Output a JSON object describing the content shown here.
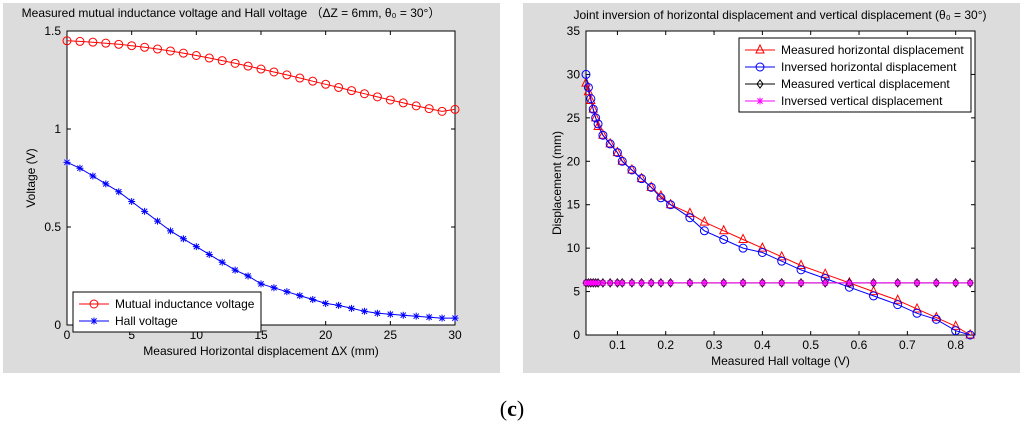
{
  "chart_data": [
    {
      "type": "line",
      "title": "Measured mutual inductance voltage and Hall voltage",
      "title_params": "（ΔZ = 6mm, θ₀ = 30°）",
      "xlabel": "Measured Horizontal displacement ΔX (mm)",
      "ylabel": "Voltage (V)",
      "xlim": [
        0,
        30
      ],
      "ylim": [
        0,
        1.5
      ],
      "xticks": [
        0,
        5,
        10,
        15,
        20,
        25,
        30
      ],
      "yticks": [
        0,
        0.5,
        1,
        1.5
      ],
      "ytick_labels": [
        "0",
        "0.5",
        "1",
        "1.5"
      ],
      "legend_position": "bottom-left",
      "x": [
        0,
        1,
        2,
        3,
        4,
        5,
        6,
        7,
        8,
        9,
        10,
        11,
        12,
        13,
        14,
        15,
        16,
        17,
        18,
        19,
        20,
        21,
        22,
        23,
        24,
        25,
        26,
        27,
        28,
        29,
        30
      ],
      "series": [
        {
          "name": "Mutual inductance voltage",
          "color": "#ff0000",
          "marker": "circle",
          "values": [
            1.45,
            1.447,
            1.443,
            1.438,
            1.432,
            1.425,
            1.417,
            1.408,
            1.398,
            1.387,
            1.375,
            1.362,
            1.349,
            1.335,
            1.321,
            1.306,
            1.291,
            1.276,
            1.26,
            1.244,
            1.228,
            1.212,
            1.196,
            1.18,
            1.164,
            1.148,
            1.133,
            1.118,
            1.104,
            1.09,
            1.1
          ]
        },
        {
          "name": "Hall voltage",
          "color": "#0000ff",
          "marker": "star",
          "values": [
            0.83,
            0.8,
            0.76,
            0.72,
            0.68,
            0.63,
            0.58,
            0.53,
            0.48,
            0.44,
            0.4,
            0.36,
            0.32,
            0.28,
            0.25,
            0.21,
            0.19,
            0.17,
            0.15,
            0.13,
            0.11,
            0.1,
            0.085,
            0.07,
            0.06,
            0.055,
            0.05,
            0.045,
            0.04,
            0.035,
            0.035
          ]
        }
      ]
    },
    {
      "type": "line",
      "title": "Joint inversion of horizontal displacement and vertical displacement",
      "title_params": "(θ₀ = 30°)",
      "xlabel": "Measured Hall voltage (V)",
      "ylabel": "Displacement (mm)",
      "xlim": [
        0.035,
        0.84
      ],
      "ylim": [
        0,
        35
      ],
      "xticks": [
        0.1,
        0.2,
        0.3,
        0.4,
        0.5,
        0.6,
        0.7,
        0.8
      ],
      "xtick_labels": [
        "0.1",
        "0.2",
        "0.3",
        "0.4",
        "0.5",
        "0.6",
        "0.7",
        "0.8"
      ],
      "yticks": [
        0,
        5,
        10,
        15,
        20,
        25,
        30,
        35
      ],
      "legend_position": "top-right",
      "x": [
        0.035,
        0.04,
        0.045,
        0.05,
        0.055,
        0.06,
        0.07,
        0.085,
        0.1,
        0.11,
        0.13,
        0.15,
        0.17,
        0.19,
        0.21,
        0.25,
        0.28,
        0.32,
        0.36,
        0.4,
        0.44,
        0.48,
        0.53,
        0.58,
        0.63,
        0.68,
        0.72,
        0.76,
        0.8,
        0.83
      ],
      "series": [
        {
          "name": "Measured horizontal displacement",
          "color": "#ff0000",
          "marker": "triangle",
          "values": [
            29,
            28,
            27,
            26,
            25,
            24,
            23,
            22,
            21,
            20,
            19,
            18,
            17,
            16,
            15,
            14,
            13,
            12,
            11,
            10,
            9,
            8,
            7,
            6,
            5,
            4,
            3,
            2,
            1,
            0
          ]
        },
        {
          "name": "Inversed horizontal displacement",
          "color": "#0000ff",
          "marker": "circle",
          "values": [
            30,
            28.5,
            27.2,
            26,
            25,
            24.3,
            23,
            22,
            21,
            20,
            19,
            18,
            17,
            15.8,
            15,
            13.5,
            12,
            11,
            10,
            9.5,
            8.5,
            7.5,
            6.5,
            5.5,
            4.5,
            3.5,
            2.5,
            1.8,
            0.5,
            0
          ]
        },
        {
          "name": "Measured vertical displacement",
          "color": "#000000",
          "marker": "diamond",
          "values": [
            6,
            6,
            6,
            6,
            6,
            6,
            6,
            6,
            6,
            6,
            6,
            6,
            6,
            6,
            6,
            6,
            6,
            6,
            6,
            6,
            6,
            6,
            6,
            6,
            6,
            6,
            6,
            6,
            6,
            6
          ]
        },
        {
          "name": "Inversed vertical displacement",
          "color": "#ff00ff",
          "marker": "star",
          "values": [
            6,
            6,
            6,
            6,
            6,
            6,
            6,
            6,
            6,
            6,
            6,
            6,
            6,
            6,
            6,
            6,
            6,
            6,
            6,
            6,
            6,
            6,
            6,
            6,
            6,
            6,
            6,
            6,
            6,
            6
          ]
        }
      ]
    }
  ],
  "caption": {
    "open": "(",
    "label": "c",
    "close": ")"
  }
}
